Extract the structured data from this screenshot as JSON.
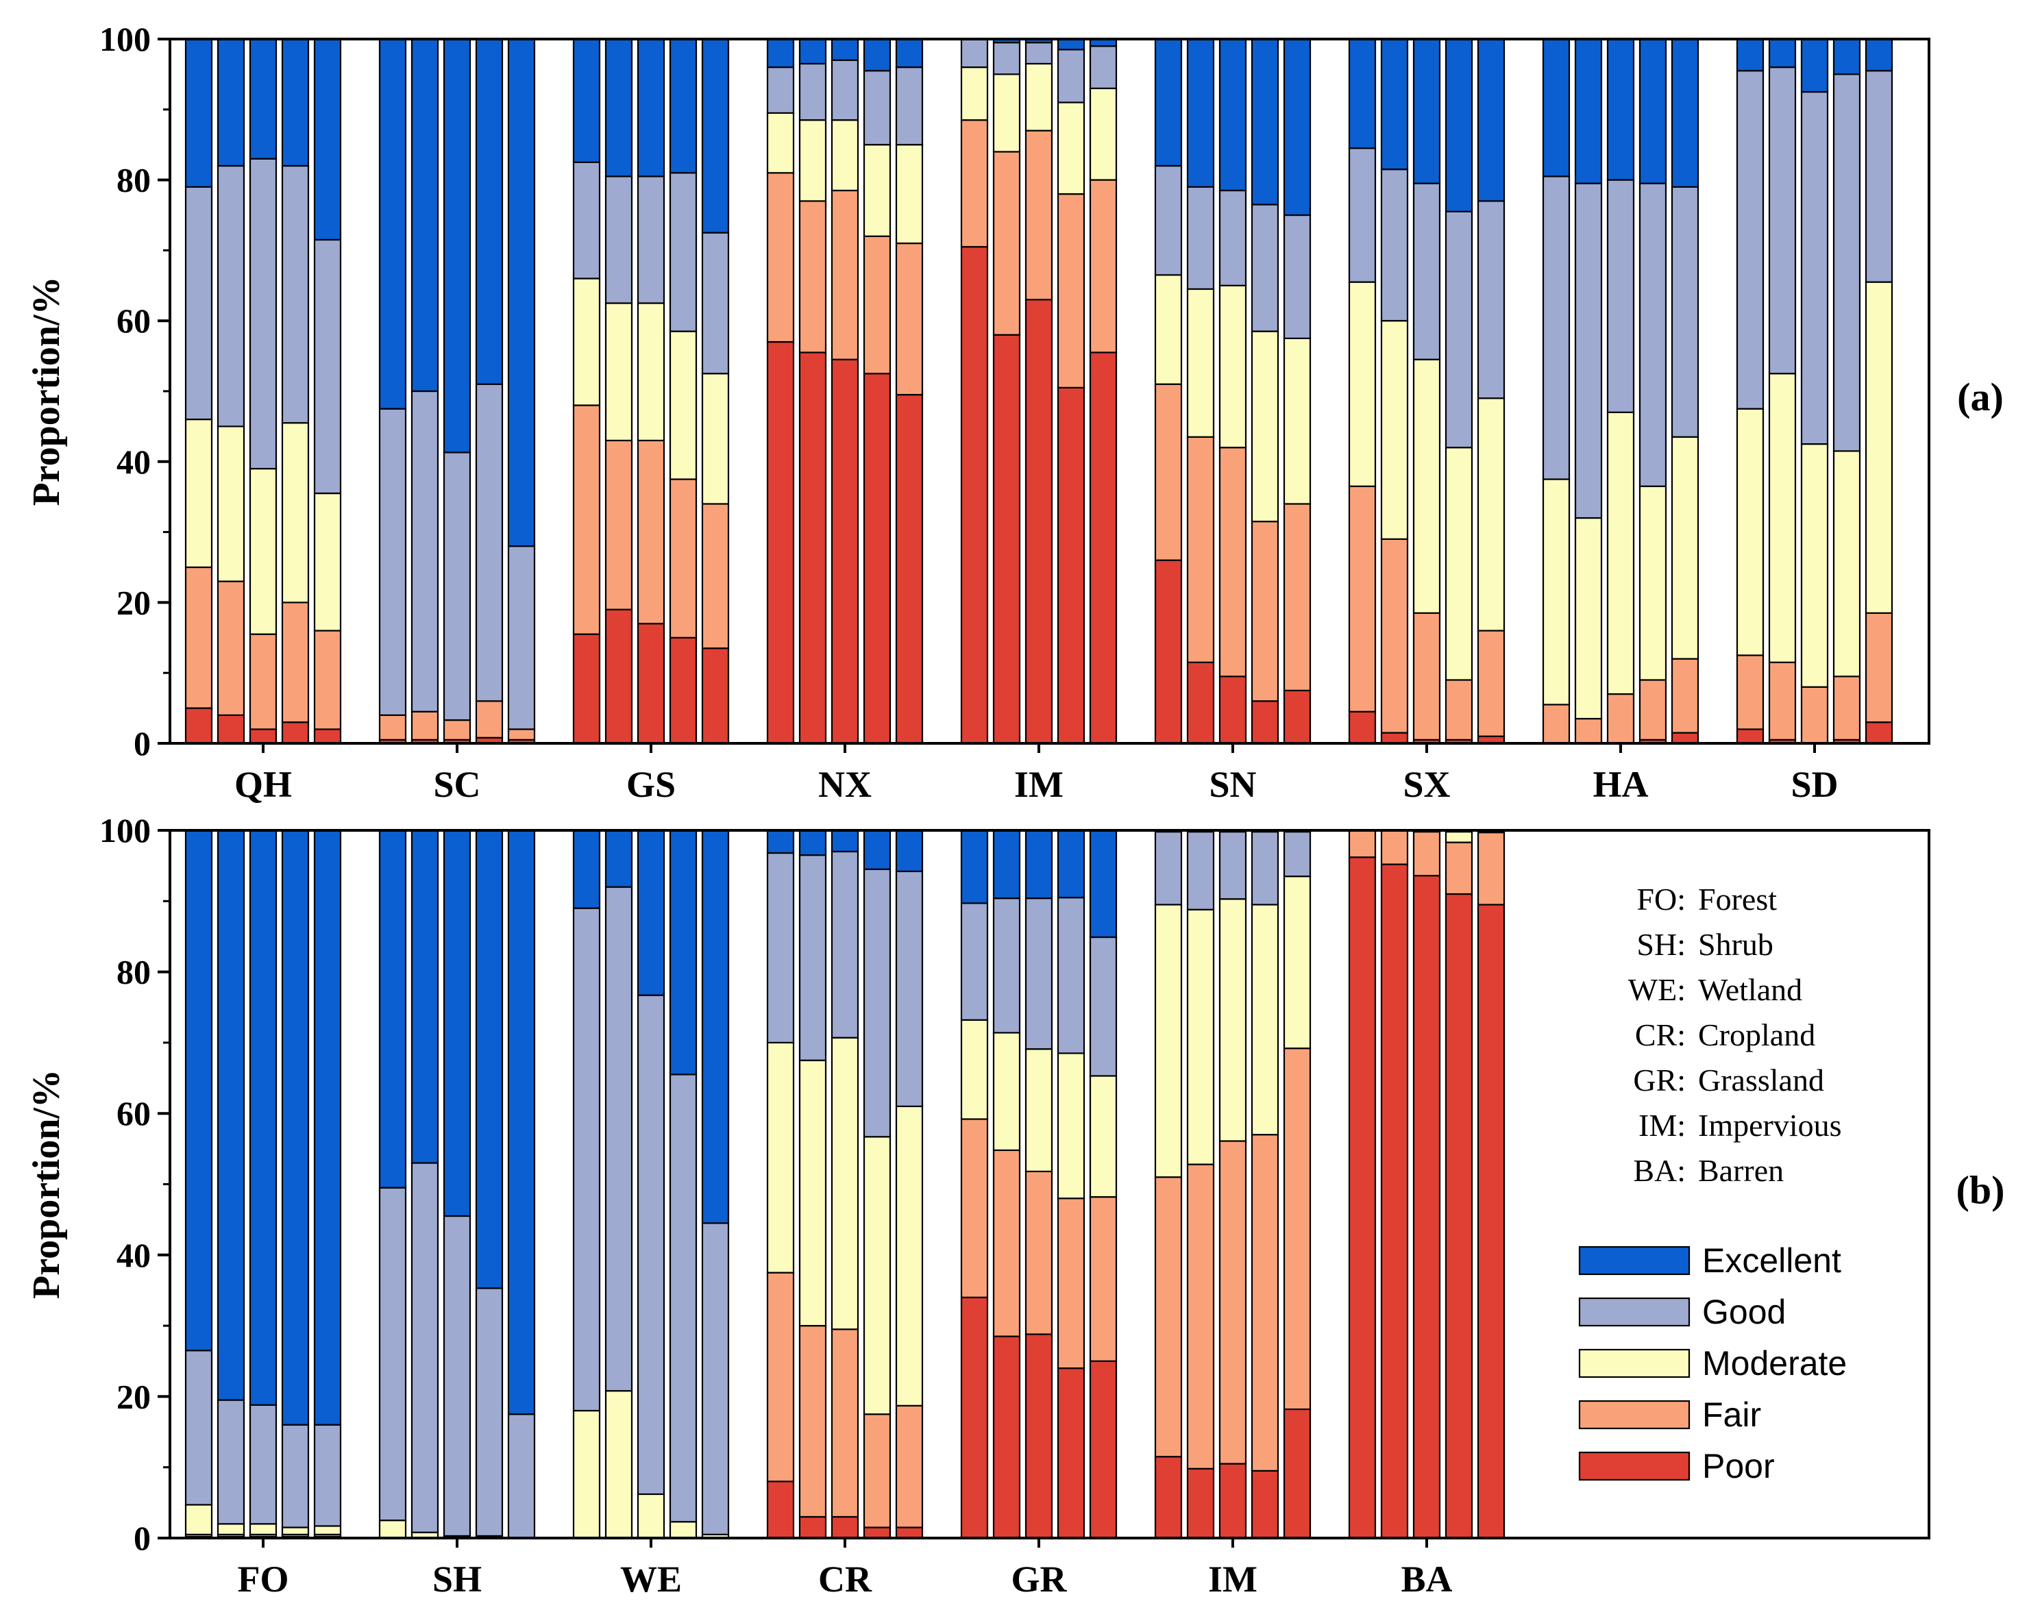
{
  "chart_data": [
    {
      "panel_label": "(a)",
      "type": "bar",
      "stacked": true,
      "ylabel": "Proportion/%",
      "ylim": [
        0,
        100
      ],
      "yticks": [
        "0",
        "20",
        "40",
        "60",
        "80",
        "100"
      ],
      "groups": [
        {
          "label": "QH",
          "bars": [
            [
              5,
              20,
              21,
              33,
              21
            ],
            [
              4,
              19,
              22,
              37,
              18
            ],
            [
              2,
              13.5,
              23.5,
              44,
              17
            ],
            [
              3,
              17,
              25.5,
              36.5,
              18
            ],
            [
              2,
              14,
              19.5,
              36,
              28.5
            ]
          ]
        },
        {
          "label": "SC",
          "bars": [
            [
              0.5,
              3.5,
              0,
              43.5,
              52.5
            ],
            [
              0.5,
              4,
              0,
              45.5,
              50
            ],
            [
              0.5,
              2.8,
              0,
              38,
              58.7
            ],
            [
              0.8,
              5.2,
              0,
              45,
              49
            ],
            [
              0.5,
              1.5,
              0,
              26,
              72
            ]
          ]
        },
        {
          "label": "GS",
          "bars": [
            [
              15.5,
              32.5,
              18,
              16.5,
              17.5
            ],
            [
              19,
              24,
              19.5,
              18,
              19.5
            ],
            [
              17,
              26,
              19.5,
              18,
              19.5
            ],
            [
              15,
              22.5,
              21,
              22.5,
              19
            ],
            [
              13.5,
              20.5,
              18.5,
              20,
              27.5
            ]
          ]
        },
        {
          "label": "NX",
          "bars": [
            [
              57,
              24,
              8.5,
              6.5,
              4
            ],
            [
              55.5,
              21.5,
              11.5,
              8,
              3.5
            ],
            [
              54.5,
              24,
              10,
              8.5,
              3
            ],
            [
              52.5,
              19.5,
              13,
              10.5,
              4.5
            ],
            [
              49.5,
              21.5,
              14,
              11,
              4
            ]
          ]
        },
        {
          "label": "IM",
          "bars": [
            [
              70.5,
              18,
              7.5,
              4,
              0
            ],
            [
              58,
              26,
              11,
              4.5,
              0.5
            ],
            [
              63,
              24,
              9.5,
              3,
              0.5
            ],
            [
              50.5,
              27.5,
              13,
              7.5,
              1.5
            ],
            [
              55.5,
              24.5,
              13,
              6,
              1
            ]
          ]
        },
        {
          "label": "SN",
          "bars": [
            [
              26,
              25,
              15.5,
              15.5,
              18
            ],
            [
              11.5,
              32,
              21,
              14.5,
              21
            ],
            [
              9.5,
              32.5,
              23,
              13.5,
              21.5
            ],
            [
              6,
              25.5,
              27,
              18,
              23.5
            ],
            [
              7.5,
              26.5,
              23.5,
              17.5,
              25
            ]
          ]
        },
        {
          "label": "SX",
          "bars": [
            [
              4.5,
              32,
              29,
              19,
              15.5
            ],
            [
              1.5,
              27.5,
              31,
              21.5,
              18.5
            ],
            [
              0.5,
              18,
              36,
              25,
              20.5
            ],
            [
              0.5,
              8.5,
              33,
              33.5,
              24.5
            ],
            [
              1,
              15,
              33,
              28,
              23
            ]
          ]
        },
        {
          "label": "HA",
          "bars": [
            [
              0,
              5.5,
              32,
              43,
              19.5
            ],
            [
              0,
              3.5,
              28.5,
              47.5,
              20.5
            ],
            [
              0,
              7,
              40,
              33,
              20
            ],
            [
              0.5,
              8.5,
              27.5,
              43,
              20.5
            ],
            [
              1.5,
              10.5,
              31.5,
              35.5,
              21
            ]
          ]
        },
        {
          "label": "SD",
          "bars": [
            [
              2,
              10.5,
              35,
              48,
              4.5
            ],
            [
              0.5,
              11,
              41,
              43.5,
              4
            ],
            [
              0,
              8,
              34.5,
              50,
              7.5
            ],
            [
              0.5,
              9,
              32,
              53.5,
              5
            ],
            [
              3,
              15.5,
              47,
              30,
              4.5
            ]
          ]
        }
      ]
    },
    {
      "panel_label": "(b)",
      "type": "bar",
      "stacked": true,
      "ylabel": "Proportion/%",
      "ylim": [
        0,
        100
      ],
      "yticks": [
        "0",
        "20",
        "40",
        "60",
        "80",
        "100"
      ],
      "groups": [
        {
          "label": "FO",
          "bars": [
            [
              0.2,
              0.3,
              4.2,
              21.8,
              73.5
            ],
            [
              0.2,
              0.3,
              1.5,
              17.5,
              80.5
            ],
            [
              0.2,
              0.3,
              1.5,
              16.8,
              81.2
            ],
            [
              0.2,
              0.3,
              1,
              14.5,
              84
            ],
            [
              0.2,
              0.3,
              1.2,
              14.3,
              84
            ]
          ]
        },
        {
          "label": "SH",
          "bars": [
            [
              0,
              0,
              2.5,
              47,
              50.5
            ],
            [
              0,
              0,
              0.8,
              52.2,
              47
            ],
            [
              0,
              0,
              0.3,
              45.2,
              54.5
            ],
            [
              0,
              0,
              0.3,
              35,
              64.7
            ],
            [
              0,
              0,
              0,
              17.5,
              82.5
            ]
          ]
        },
        {
          "label": "WE",
          "bars": [
            [
              0,
              0,
              18,
              71,
              11
            ],
            [
              0,
              0,
              20.8,
              71.2,
              8
            ],
            [
              0,
              0,
              6.2,
              70.5,
              23.3
            ],
            [
              0,
              0,
              2.3,
              63.2,
              34.5
            ],
            [
              0,
              0,
              0.5,
              44,
              55.5
            ]
          ]
        },
        {
          "label": "CR",
          "bars": [
            [
              8,
              29.5,
              32.5,
              26.8,
              3.2
            ],
            [
              3,
              27,
              37.5,
              29,
              3.5
            ],
            [
              3,
              26.5,
              41.2,
              26.3,
              3
            ],
            [
              1.5,
              16,
              39.2,
              37.8,
              5.5
            ],
            [
              1.5,
              17.2,
              42.3,
              33.2,
              5.8
            ]
          ]
        },
        {
          "label": "GR",
          "bars": [
            [
              34,
              25.2,
              14,
              16.5,
              10.3
            ],
            [
              28.5,
              26.3,
              16.6,
              19,
              9.6
            ],
            [
              28.8,
              23,
              17.3,
              21.3,
              9.6
            ],
            [
              24,
              24,
              20.5,
              22,
              9.5
            ],
            [
              25,
              23.2,
              17.1,
              19.6,
              15.1
            ]
          ]
        },
        {
          "label": "IM",
          "bars": [
            [
              11.5,
              39.5,
              38.5,
              10.3,
              0.2
            ],
            [
              9.8,
              43,
              36,
              11,
              0.2
            ],
            [
              10.5,
              45.6,
              34.2,
              9.5,
              0.2
            ],
            [
              9.5,
              47.5,
              32.5,
              10.3,
              0.2
            ],
            [
              18.2,
              51,
              24.3,
              6.3,
              0.2
            ]
          ]
        },
        {
          "label": "BA",
          "bars": [
            [
              96.2,
              3.8,
              0,
              0,
              0
            ],
            [
              95.2,
              4.8,
              0,
              0,
              0
            ],
            [
              93.6,
              6.2,
              0.2,
              0,
              0
            ],
            [
              91,
              7.3,
              1.5,
              0.2,
              0
            ],
            [
              89.5,
              10.2,
              0.2,
              0.1,
              0
            ]
          ]
        }
      ],
      "abbreviations": [
        {
          "code": "FO:",
          "name": "Forest"
        },
        {
          "code": "SH:",
          "name": "Shrub"
        },
        {
          "code": "WE:",
          "name": "Wetland"
        },
        {
          "code": "CR:",
          "name": "Cropland"
        },
        {
          "code": "GR:",
          "name": "Grassland"
        },
        {
          "code": "IM:",
          "name": "Impervious"
        },
        {
          "code": "BA:",
          "name": "Barren"
        }
      ]
    }
  ],
  "levels": [
    {
      "name": "Excellent",
      "color": "#0b5fd0"
    },
    {
      "name": "Good",
      "color": "#9faad1"
    },
    {
      "name": "Moderate",
      "color": "#fdfcbf"
    },
    {
      "name": "Fair",
      "color": "#f9a27a"
    },
    {
      "name": "Poor",
      "color": "#e03f34"
    }
  ],
  "stack_order": [
    "Poor",
    "Fair",
    "Moderate",
    "Good",
    "Excellent"
  ]
}
